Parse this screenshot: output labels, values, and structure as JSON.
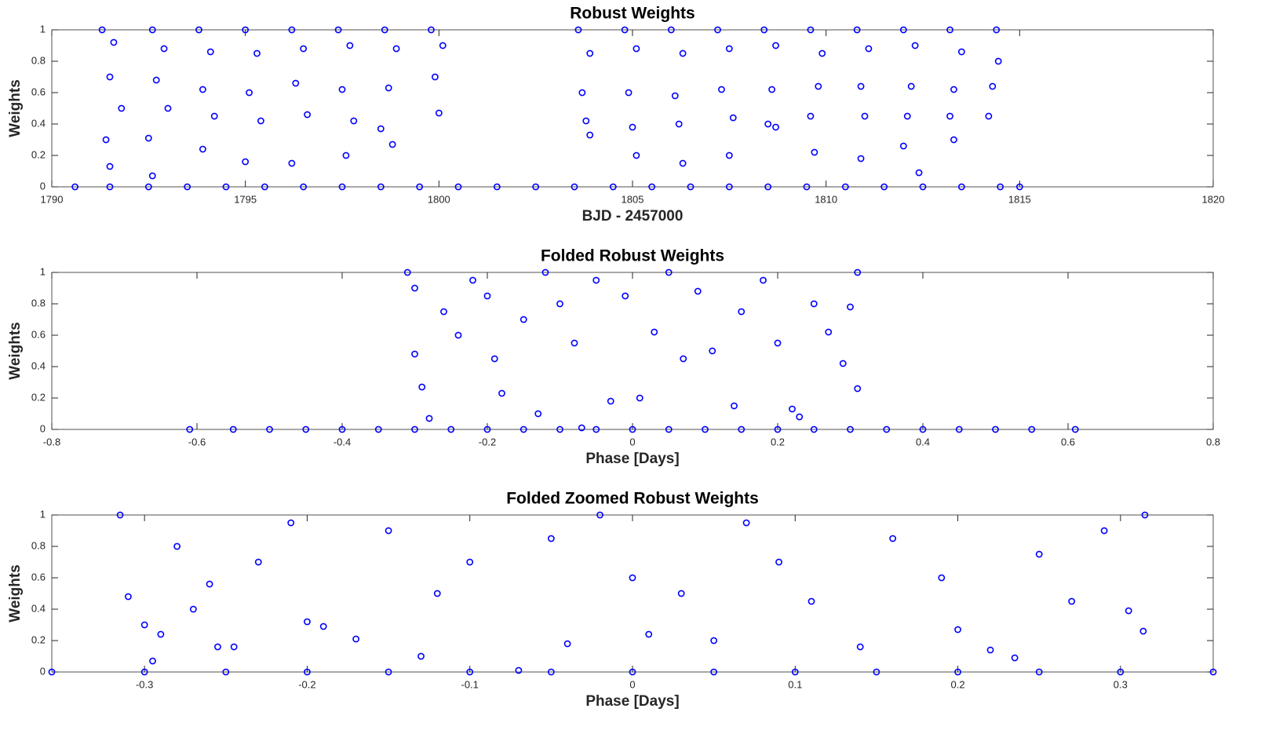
{
  "chart_data": [
    {
      "type": "scatter",
      "title": "Robust Weights",
      "xlabel": "BJD - 2457000",
      "ylabel": "Weights",
      "color": "#0000ff",
      "xlim": [
        1790,
        1820
      ],
      "xticks": [
        1790,
        1795,
        1800,
        1805,
        1810,
        1815,
        1820
      ],
      "ylim": [
        0,
        1
      ],
      "yticks": [
        0,
        0.2,
        0.4,
        0.6,
        0.8,
        1
      ],
      "x": [
        1791.3,
        1791.6,
        1791.5,
        1791.8,
        1791.4,
        1791.5,
        1792.6,
        1792.9,
        1792.7,
        1793.0,
        1792.5,
        1792.6,
        1793.8,
        1794.1,
        1793.9,
        1794.2,
        1793.9,
        1795.0,
        1795.3,
        1795.1,
        1795.4,
        1795.0,
        1796.2,
        1796.5,
        1796.3,
        1796.6,
        1796.2,
        1797.4,
        1797.7,
        1797.5,
        1797.8,
        1797.6,
        1798.6,
        1798.9,
        1798.7,
        1798.5,
        1798.8,
        1799.8,
        1800.1,
        1799.9,
        1800.0,
        1803.6,
        1803.9,
        1803.7,
        1803.8,
        1803.9,
        1804.8,
        1805.1,
        1804.9,
        1805.0,
        1805.1,
        1806.0,
        1806.3,
        1806.1,
        1806.2,
        1806.3,
        1807.2,
        1807.5,
        1807.3,
        1807.6,
        1807.5,
        1808.4,
        1808.7,
        1808.6,
        1808.5,
        1808.7,
        1809.6,
        1809.9,
        1809.8,
        1809.6,
        1809.7,
        1810.8,
        1811.1,
        1810.9,
        1811.0,
        1810.9,
        1812.0,
        1812.3,
        1812.2,
        1812.1,
        1812.0,
        1812.4,
        1813.2,
        1813.5,
        1813.3,
        1813.2,
        1813.3,
        1814.4,
        1814.45,
        1814.3,
        1814.2,
        1790.6,
        1791.5,
        1792.5,
        1793.5,
        1794.5,
        1795.5,
        1796.5,
        1797.5,
        1798.5,
        1799.5,
        1800.5,
        1801.5,
        1802.5,
        1803.5,
        1804.5,
        1805.5,
        1806.5,
        1807.5,
        1808.5,
        1809.5,
        1810.5,
        1811.5,
        1812.5,
        1813.5,
        1814.5,
        1815
      ],
      "y": [
        1,
        0.92,
        0.7,
        0.5,
        0.3,
        0.13,
        1,
        0.88,
        0.68,
        0.5,
        0.31,
        0.07,
        1,
        0.86,
        0.62,
        0.45,
        0.24,
        1,
        0.85,
        0.6,
        0.42,
        0.16,
        1,
        0.88,
        0.66,
        0.46,
        0.15,
        1,
        0.9,
        0.62,
        0.42,
        0.2,
        1,
        0.88,
        0.63,
        0.37,
        0.27,
        1,
        0.9,
        0.7,
        0.47,
        1,
        0.85,
        0.6,
        0.42,
        0.33,
        1,
        0.88,
        0.6,
        0.38,
        0.2,
        1,
        0.85,
        0.58,
        0.4,
        0.15,
        1,
        0.88,
        0.62,
        0.44,
        0.2,
        1,
        0.9,
        0.62,
        0.4,
        0.38,
        1,
        0.85,
        0.64,
        0.45,
        0.22,
        1,
        0.88,
        0.64,
        0.45,
        0.18,
        1,
        0.9,
        0.64,
        0.45,
        0.26,
        0.09,
        1,
        0.86,
        0.62,
        0.45,
        0.3,
        1,
        0.8,
        0.64,
        0.45,
        0,
        0,
        0,
        0,
        0,
        0,
        0,
        0,
        0,
        0,
        0,
        0,
        0,
        0,
        0,
        0,
        0,
        0,
        0,
        0,
        0,
        0,
        0,
        0,
        0,
        0
      ]
    },
    {
      "type": "scatter",
      "title": "Folded Robust Weights",
      "xlabel": "Phase [Days]",
      "ylabel": "Weights",
      "color": "#0000ff",
      "xlim": [
        -0.8,
        0.8
      ],
      "xticks": [
        -0.8,
        -0.6,
        -0.4,
        -0.2,
        0,
        0.2,
        0.4,
        0.6,
        0.8
      ],
      "ylim": [
        0,
        1
      ],
      "yticks": [
        0,
        0.2,
        0.4,
        0.6,
        0.8,
        1
      ],
      "x": [
        -0.31,
        -0.3,
        -0.3,
        -0.29,
        -0.28,
        -0.26,
        -0.24,
        -0.22,
        -0.2,
        -0.19,
        -0.18,
        -0.15,
        -0.13,
        -0.12,
        -0.1,
        -0.08,
        -0.07,
        -0.05,
        -0.03,
        -0.01,
        0.01,
        0.03,
        0.05,
        0.07,
        0.09,
        0.11,
        0.14,
        0.15,
        0.18,
        0.2,
        0.22,
        0.23,
        0.25,
        0.27,
        0.29,
        0.31,
        0.31,
        0.3,
        -0.61,
        -0.55,
        -0.5,
        -0.45,
        -0.4,
        -0.35,
        -0.3,
        -0.25,
        -0.2,
        -0.15,
        -0.1,
        -0.05,
        0,
        0.05,
        0.1,
        0.15,
        0.2,
        0.25,
        0.3,
        0.35,
        0.4,
        0.45,
        0.5,
        0.55,
        0.61
      ],
      "y": [
        1,
        0.9,
        0.48,
        0.27,
        0.07,
        0.75,
        0.6,
        0.95,
        0.85,
        0.45,
        0.23,
        0.7,
        0.1,
        1,
        0.8,
        0.55,
        0.01,
        0.95,
        0.18,
        0.85,
        0.2,
        0.62,
        1,
        0.45,
        0.88,
        0.5,
        0.15,
        0.75,
        0.95,
        0.55,
        0.13,
        0.08,
        0.8,
        0.62,
        0.42,
        1,
        0.26,
        0.78,
        0,
        0,
        0,
        0,
        0,
        0,
        0,
        0,
        0,
        0,
        0,
        0,
        0,
        0,
        0,
        0,
        0,
        0,
        0,
        0,
        0,
        0,
        0,
        0,
        0
      ]
    },
    {
      "type": "scatter",
      "title": "Folded Zoomed Robust Weights",
      "xlabel": "Phase [Days]",
      "ylabel": "Weights",
      "color": "#0000ff",
      "xlim": [
        -0.357,
        0.357
      ],
      "xticks": [
        -0.3,
        -0.2,
        -0.1,
        0,
        0.1,
        0.2,
        0.3
      ],
      "ylim": [
        0,
        1
      ],
      "yticks": [
        0,
        0.2,
        0.4,
        0.6,
        0.8,
        1
      ],
      "x": [
        -0.315,
        -0.31,
        -0.3,
        -0.295,
        -0.29,
        -0.28,
        -0.27,
        -0.26,
        -0.255,
        -0.245,
        -0.23,
        -0.21,
        -0.2,
        -0.19,
        -0.17,
        -0.15,
        -0.13,
        -0.12,
        -0.1,
        -0.07,
        -0.05,
        -0.04,
        -0.02,
        0,
        0.01,
        0.03,
        0.05,
        0.07,
        0.09,
        0.11,
        0.14,
        0.16,
        0.19,
        0.2,
        0.22,
        0.235,
        0.25,
        0.27,
        0.29,
        0.305,
        0.315,
        0.314,
        -0.357,
        -0.3,
        -0.25,
        -0.2,
        -0.15,
        -0.1,
        -0.05,
        0,
        0.05,
        0.1,
        0.15,
        0.2,
        0.25,
        0.3,
        0.357
      ],
      "y": [
        1,
        0.48,
        0.3,
        0.07,
        0.24,
        0.8,
        0.4,
        0.56,
        0.16,
        0.16,
        0.7,
        0.95,
        0.32,
        0.29,
        0.21,
        0.9,
        0.1,
        0.5,
        0.7,
        0.01,
        0.85,
        0.18,
        1,
        0.6,
        0.24,
        0.5,
        0.2,
        0.95,
        0.7,
        0.45,
        0.16,
        0.85,
        0.6,
        0.27,
        0.14,
        0.09,
        0.75,
        0.45,
        0.9,
        0.39,
        1,
        0.26,
        0,
        0,
        0,
        0,
        0,
        0,
        0,
        0,
        0,
        0,
        0,
        0,
        0,
        0,
        0
      ]
    }
  ]
}
